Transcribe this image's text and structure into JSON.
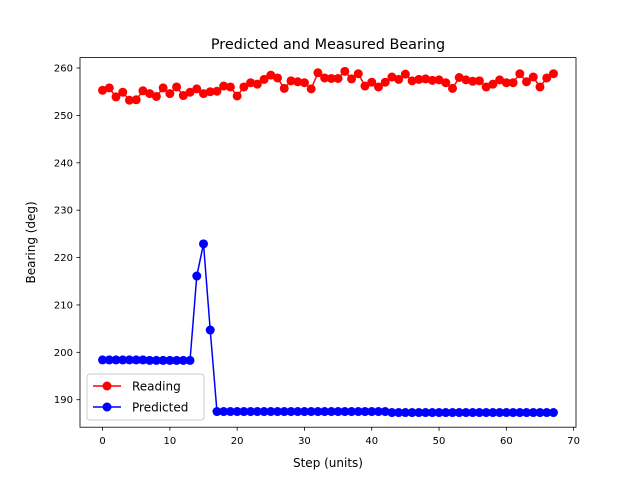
{
  "chart_data": {
    "type": "line",
    "title": "Predicted and Measured Bearing",
    "xlabel": "Step (units)",
    "ylabel": "Bearing (deg)",
    "xlim": [
      -3.35,
      70.35
    ],
    "ylim": [
      184.2,
      262.2
    ],
    "xticks": [
      0,
      10,
      20,
      30,
      40,
      50,
      60,
      70
    ],
    "yticks": [
      190,
      200,
      210,
      220,
      230,
      240,
      250,
      260
    ],
    "grid": false,
    "legend_position": "lower-left",
    "x": [
      0,
      1,
      2,
      3,
      4,
      5,
      6,
      7,
      8,
      9,
      10,
      11,
      12,
      13,
      14,
      15,
      16,
      17,
      18,
      19,
      20,
      21,
      22,
      23,
      24,
      25,
      26,
      27,
      28,
      29,
      30,
      31,
      32,
      33,
      34,
      35,
      36,
      37,
      38,
      39,
      40,
      41,
      42,
      43,
      44,
      45,
      46,
      47,
      48,
      49,
      50,
      51,
      52,
      53,
      54,
      55,
      56,
      57,
      58,
      59,
      60,
      61,
      62,
      63,
      64,
      65,
      66,
      67
    ],
    "series": [
      {
        "name": "Reading",
        "color": "#ff0000",
        "values": [
          255.3,
          255.8,
          253.9,
          254.9,
          253.2,
          253.3,
          255.2,
          254.6,
          254.0,
          255.8,
          254.6,
          256.0,
          254.2,
          254.9,
          255.6,
          254.6,
          255.0,
          255.1,
          256.2,
          256.0,
          254.1,
          256.0,
          256.9,
          256.6,
          257.6,
          258.5,
          257.9,
          255.7,
          257.3,
          257.1,
          256.9,
          255.6,
          259.0,
          257.9,
          257.8,
          257.8,
          259.3,
          257.7,
          258.8,
          256.2,
          257.0,
          256.0,
          257.0,
          258.1,
          257.6,
          258.7,
          257.3,
          257.6,
          257.7,
          257.4,
          257.5,
          256.9,
          255.7,
          258.0,
          257.5,
          257.2,
          257.3,
          256.0,
          256.6,
          257.5,
          256.9,
          256.9,
          258.8,
          257.1,
          258.1,
          256.0,
          257.9,
          258.8
        ]
      },
      {
        "name": "Predicted",
        "color": "#0000ff",
        "values": [
          198.4,
          198.4,
          198.4,
          198.4,
          198.4,
          198.4,
          198.4,
          198.3,
          198.3,
          198.3,
          198.3,
          198.3,
          198.3,
          198.3,
          216.1,
          222.9,
          204.7,
          187.5,
          187.5,
          187.5,
          187.5,
          187.5,
          187.5,
          187.5,
          187.5,
          187.5,
          187.5,
          187.5,
          187.5,
          187.5,
          187.5,
          187.5,
          187.5,
          187.5,
          187.5,
          187.5,
          187.5,
          187.5,
          187.5,
          187.5,
          187.5,
          187.5,
          187.5,
          187.3,
          187.3,
          187.3,
          187.3,
          187.3,
          187.3,
          187.3,
          187.3,
          187.3,
          187.3,
          187.3,
          187.3,
          187.3,
          187.3,
          187.3,
          187.3,
          187.3,
          187.3,
          187.3,
          187.3,
          187.3,
          187.3,
          187.3,
          187.3,
          187.3
        ]
      }
    ]
  }
}
